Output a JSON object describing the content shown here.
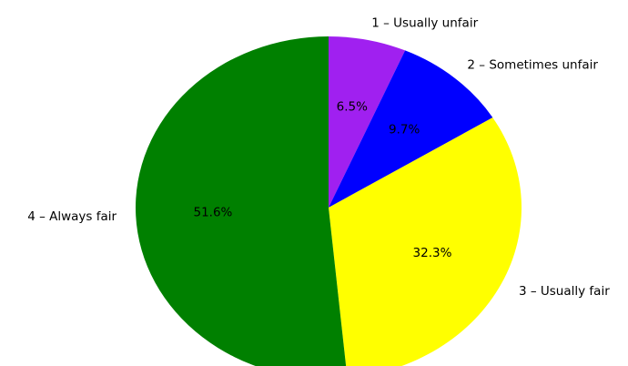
{
  "chart_data": {
    "type": "pie",
    "start_angle_deg": 90,
    "direction": "clockwise",
    "slices": [
      {
        "label": "1 – Usually unfair",
        "value": 6.5,
        "pct_label": "6.5%",
        "color": "#a020f0"
      },
      {
        "label": "2 – Sometimes unfair",
        "value": 9.7,
        "pct_label": "9.7%",
        "color": "#0000ff"
      },
      {
        "label": "3 – Usually fair",
        "value": 32.3,
        "pct_label": "32.3%",
        "color": "#ffff00"
      },
      {
        "label": "4 – Always fair",
        "value": 51.6,
        "pct_label": "51.6%",
        "color": "#008000"
      }
    ]
  }
}
